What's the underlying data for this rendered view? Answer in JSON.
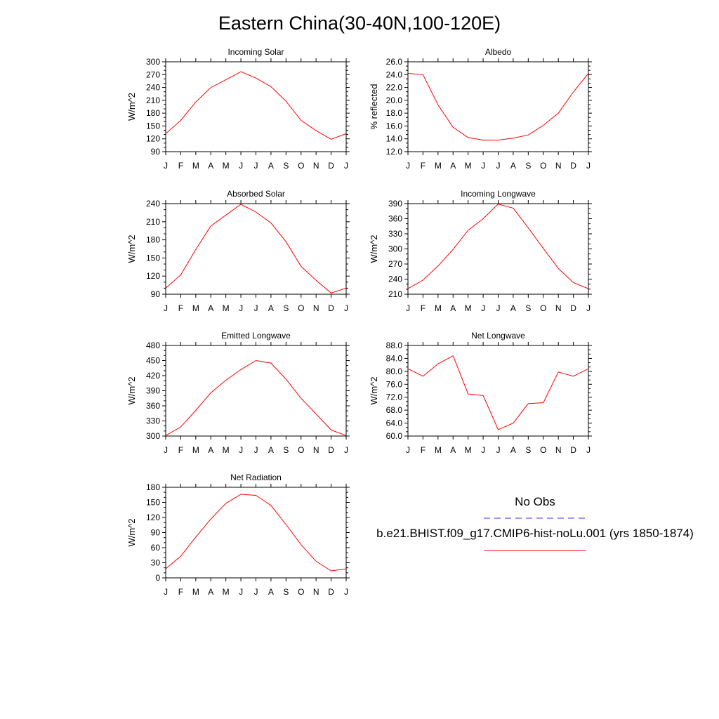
{
  "title": "Eastern China(30-40N,100-120E)",
  "colors": {
    "model": "#ff0000",
    "obs": "#3030ff",
    "axis": "#000000"
  },
  "legend": {
    "obs_label": "No Obs",
    "model_label": "b.e21.BHIST.f09_g17.CMIP6-hist-noLu.001 (yrs 1850-1874)"
  },
  "chart_data": [
    {
      "type": "line",
      "title": "Incoming Solar",
      "ylabel": "W/m^2",
      "x": [
        "J",
        "F",
        "M",
        "A",
        "M",
        "J",
        "J",
        "A",
        "S",
        "O",
        "N",
        "D",
        "J"
      ],
      "ylim": [
        90,
        300
      ],
      "yticks": [
        "90",
        "120",
        "150",
        "180",
        "210",
        "240",
        "270",
        "300"
      ],
      "series": [
        {
          "values": [
            132,
            163,
            206,
            240,
            258,
            277,
            262,
            242,
            208,
            163,
            139,
            119,
            132
          ]
        }
      ]
    },
    {
      "type": "line",
      "title": "Albedo",
      "ylabel": "% reflected",
      "x": [
        "J",
        "F",
        "M",
        "A",
        "M",
        "J",
        "J",
        "A",
        "S",
        "O",
        "N",
        "D",
        "J"
      ],
      "ylim": [
        12.0,
        26.0
      ],
      "yticks": [
        "12.0",
        "14.0",
        "16.0",
        "18.0",
        "20.0",
        "22.0",
        "24.0",
        "26.0"
      ],
      "series": [
        {
          "values": [
            24.2,
            24.0,
            19.3,
            15.8,
            14.2,
            13.8,
            13.8,
            14.1,
            14.6,
            16.1,
            18.0,
            21.3,
            24.2
          ]
        }
      ]
    },
    {
      "type": "line",
      "title": "Absorbed Solar",
      "ylabel": "W/m^2",
      "x": [
        "J",
        "F",
        "M",
        "A",
        "M",
        "J",
        "J",
        "A",
        "S",
        "O",
        "N",
        "D",
        "J"
      ],
      "ylim": [
        90,
        240
      ],
      "yticks": [
        "90",
        "120",
        "150",
        "180",
        "210",
        "240"
      ],
      "series": [
        {
          "values": [
            100,
            122,
            164,
            203,
            221,
            239,
            226,
            208,
            177,
            136,
            113,
            92,
            100
          ]
        }
      ]
    },
    {
      "type": "line",
      "title": "Incoming Longwave",
      "ylabel": "W/m^2",
      "x": [
        "J",
        "F",
        "M",
        "A",
        "M",
        "J",
        "J",
        "A",
        "S",
        "O",
        "N",
        "D",
        "J"
      ],
      "ylim": [
        210,
        390
      ],
      "yticks": [
        "210",
        "240",
        "270",
        "300",
        "330",
        "360",
        "390"
      ],
      "series": [
        {
          "values": [
            221,
            238,
            266,
            299,
            337,
            360,
            389,
            381,
            342,
            301,
            261,
            233,
            221
          ]
        }
      ]
    },
    {
      "type": "line",
      "title": "Emitted Longwave",
      "ylabel": "W/m^2",
      "x": [
        "J",
        "F",
        "M",
        "A",
        "M",
        "J",
        "J",
        "A",
        "S",
        "O",
        "N",
        "D",
        "J"
      ],
      "ylim": [
        300,
        480
      ],
      "yticks": [
        "300",
        "330",
        "360",
        "390",
        "420",
        "450",
        "480"
      ],
      "series": [
        {
          "values": [
            301,
            318,
            351,
            386,
            411,
            432,
            450,
            445,
            413,
            375,
            344,
            312,
            301
          ]
        }
      ]
    },
    {
      "type": "line",
      "title": "Net Longwave",
      "ylabel": "W/m^2",
      "x": [
        "J",
        "F",
        "M",
        "A",
        "M",
        "J",
        "J",
        "A",
        "S",
        "O",
        "N",
        "D",
        "J"
      ],
      "ylim": [
        60.0,
        88.0
      ],
      "yticks": [
        "60.0",
        "64.0",
        "68.0",
        "72.0",
        "76.0",
        "80.0",
        "84.0",
        "88.0"
      ],
      "series": [
        {
          "values": [
            80.8,
            78.5,
            82.3,
            84.8,
            73.0,
            72.5,
            62.0,
            64.0,
            70.0,
            70.3,
            79.8,
            78.5,
            80.8
          ]
        }
      ]
    },
    {
      "type": "line",
      "title": "Net Radiation",
      "ylabel": "W/m^2",
      "x": [
        "J",
        "F",
        "M",
        "A",
        "M",
        "J",
        "J",
        "A",
        "S",
        "O",
        "N",
        "D",
        "J"
      ],
      "ylim": [
        0,
        180
      ],
      "yticks": [
        "0",
        "30",
        "60",
        "90",
        "120",
        "150",
        "180"
      ],
      "series": [
        {
          "values": [
            18,
            43,
            81,
            117,
            148,
            166,
            164,
            144,
            106,
            66,
            33,
            14,
            18
          ]
        }
      ]
    }
  ]
}
